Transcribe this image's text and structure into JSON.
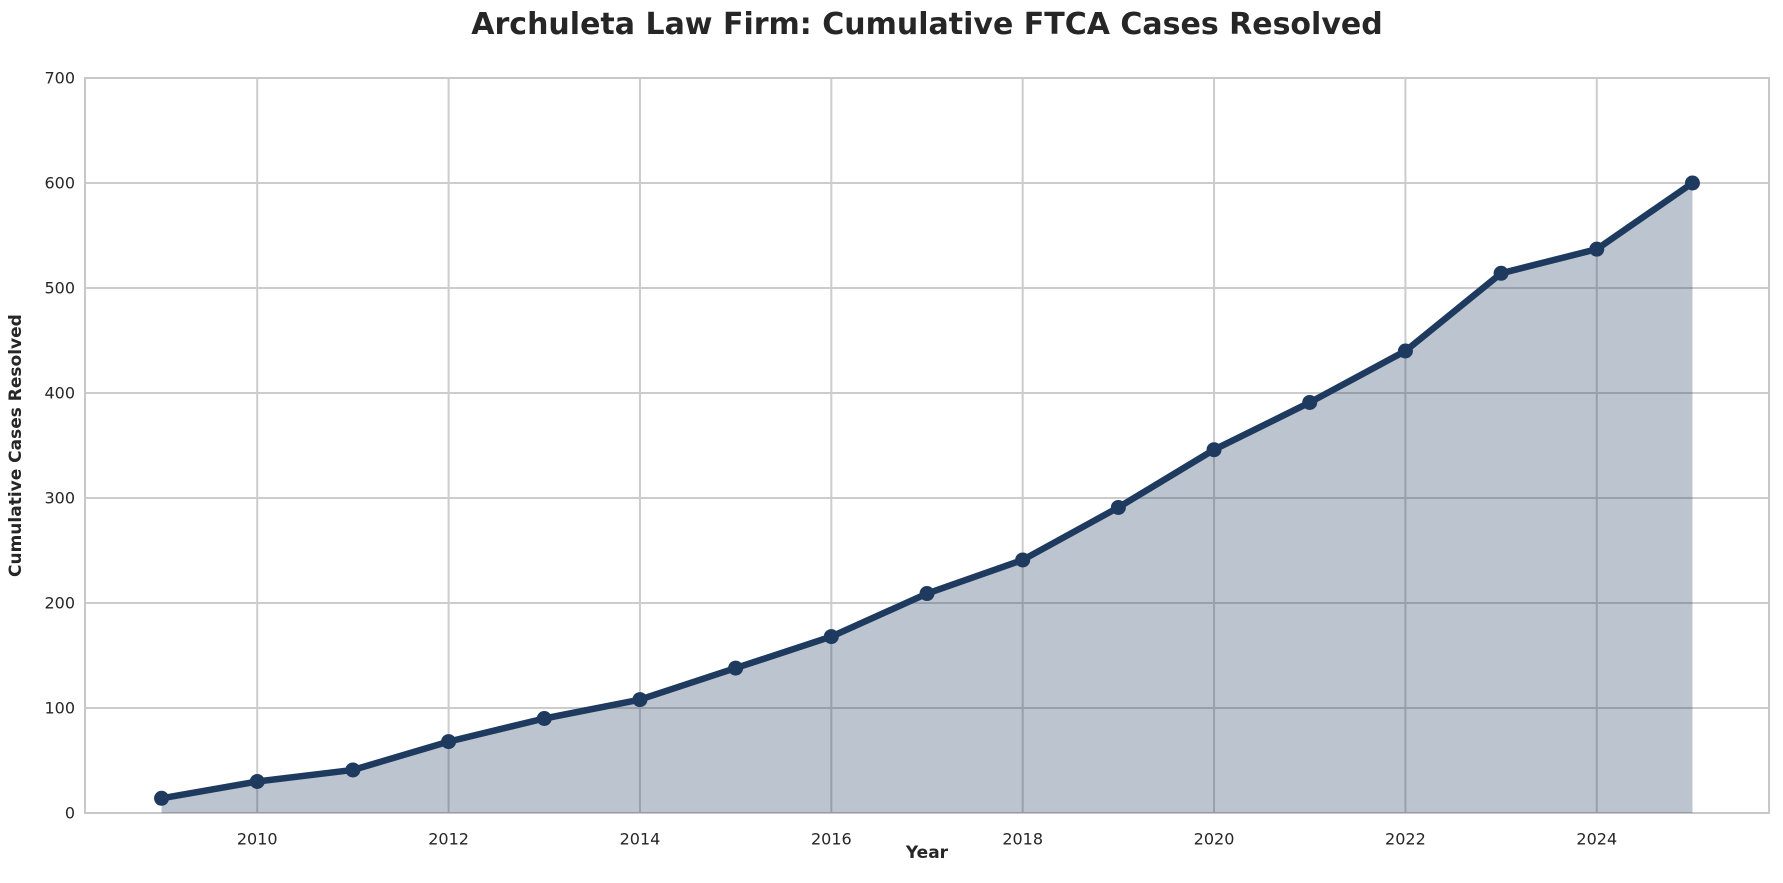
{
  "chart_data": {
    "type": "area",
    "title": "Archuleta Law Firm: Cumulative FTCA Cases Resolved",
    "xlabel": "Year",
    "ylabel": "Cumulative Cases Resolved",
    "x": [
      2009,
      2010,
      2011,
      2012,
      2013,
      2014,
      2015,
      2016,
      2017,
      2018,
      2019,
      2020,
      2021,
      2022,
      2023,
      2024,
      2025
    ],
    "y": [
      14,
      30,
      41,
      68,
      90,
      108,
      138,
      168,
      209,
      241,
      291,
      346,
      391,
      440,
      514,
      537,
      600
    ],
    "xlim": [
      2008.2,
      2025.8
    ],
    "ylim": [
      0,
      700
    ],
    "xticks": [
      2010,
      2012,
      2014,
      2016,
      2018,
      2020,
      2022,
      2024
    ],
    "yticks": [
      0,
      100,
      200,
      300,
      400,
      500,
      600,
      700
    ],
    "grid": true,
    "legend": false,
    "marker": "circle",
    "colors": {
      "line": "#1f3a5f",
      "fill": "#1f3a5f",
      "fill_opacity": 0.3,
      "grid": "#cccccc",
      "spine": "#c8c8c8",
      "text": "#262626",
      "background": "#ffffff"
    }
  }
}
